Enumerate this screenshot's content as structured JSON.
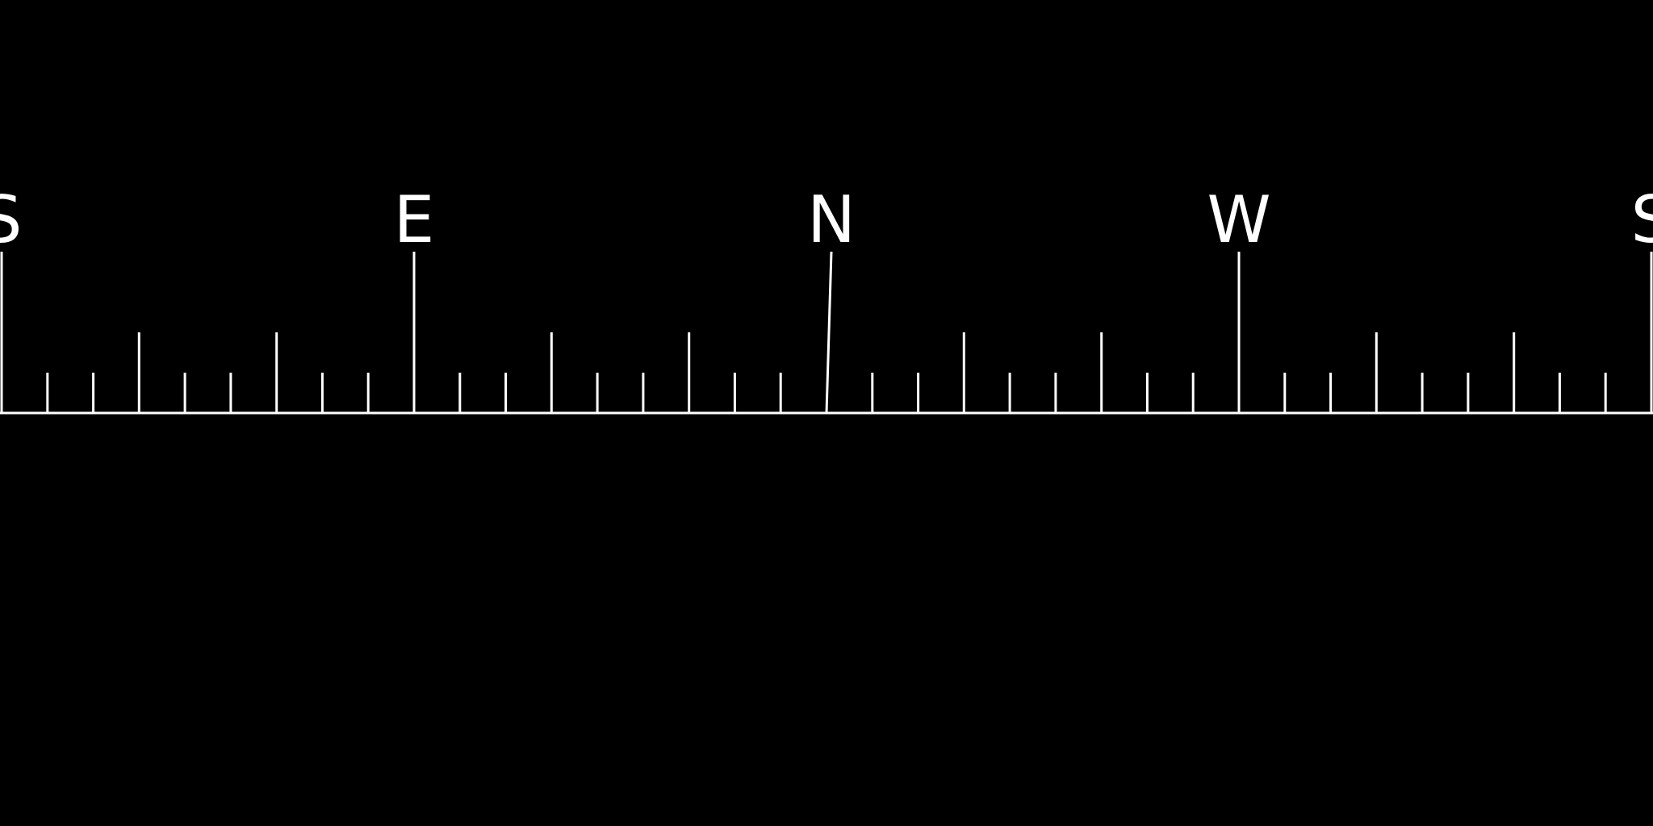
{
  "compass": {
    "labels": [
      {
        "text": "S",
        "heading": 180
      },
      {
        "text": "E",
        "heading": 90
      },
      {
        "text": "N",
        "heading": 0
      },
      {
        "text": "W",
        "heading": 270
      },
      {
        "text": "S",
        "heading": 180
      }
    ],
    "tick_interval_deg": 10,
    "major_tick_interval_deg": 90,
    "mid_tick_interval_deg": 30,
    "span_deg": 360,
    "colors": {
      "background": "#000000",
      "line": "#ffffff"
    }
  }
}
